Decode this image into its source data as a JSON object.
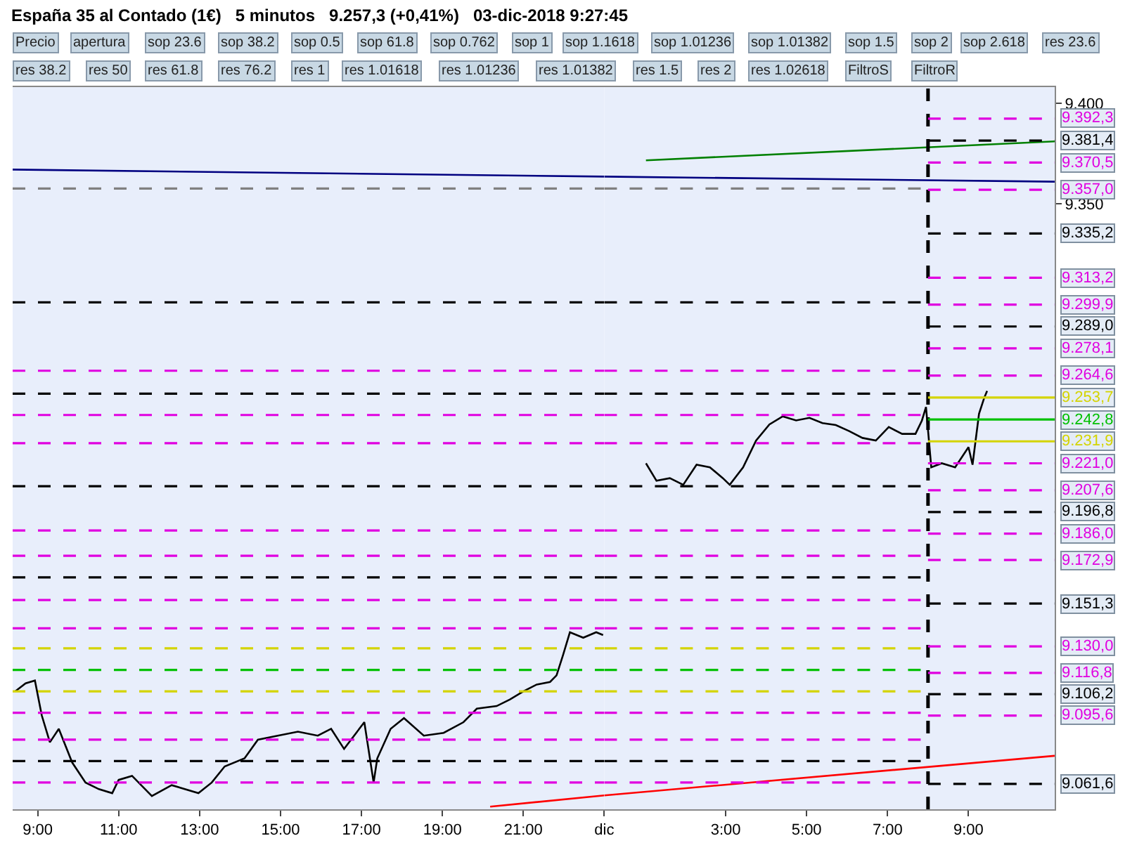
{
  "chart_data": [
    {
      "type": "line",
      "title": "España 35 al Contado (1€)   5 minutos   9.257,3 (+0,41%)   03-dic-2018 9:27:45",
      "annotations": [
        "Precio",
        "apertura",
        "sop 23.6",
        "sop 38.2",
        "sop 0.5",
        "sop 61.8",
        "sop 0.762",
        "sop 1",
        "sop 1.1618",
        "sop 1.01236",
        "sop 1.01382",
        "sop 1.5",
        "sop 2",
        "sop 2.618",
        "res 23.6",
        "res 38.2",
        "res 50",
        "res 61.8",
        "res 76.2",
        "res 1",
        "res 1.01618",
        "res 1.01236",
        "res 1.01382",
        "res 1.5",
        "res 2",
        "res 1.02618",
        "FiltroS",
        "FiltroR"
      ],
      "xlim": [
        8.38,
        23.0
      ],
      "xticks": [
        {
          "value": 9,
          "label": "9:00"
        },
        {
          "value": 11,
          "label": "11:00"
        },
        {
          "value": 13,
          "label": "13:00"
        },
        {
          "value": 15,
          "label": "15:00"
        },
        {
          "value": 17,
          "label": "17:00"
        },
        {
          "value": 19,
          "label": "19:00"
        },
        {
          "value": 21,
          "label": "21:00"
        }
      ],
      "ylim": [
        9049,
        9408
      ],
      "tick_labels": "x",
      "grid": false,
      "marker": "none",
      "series": [
        {
          "color": "#000000",
          "line_style": "solid",
          "x": [
            8.44,
            8.7,
            8.93,
            9.1,
            9.3,
            9.52,
            9.85,
            10.18,
            10.51,
            10.84,
            11.0,
            11.33,
            11.82,
            12.31,
            12.97,
            13.3,
            13.62,
            14.11,
            14.44,
            14.93,
            15.43,
            15.92,
            16.25,
            16.57,
            17.07,
            17.3,
            17.39,
            17.72,
            18.05,
            18.54,
            19.03,
            19.52,
            19.85,
            20.34,
            20.67,
            21.0,
            21.33,
            21.66,
            21.82,
            21.98,
            22.15,
            22.48,
            22.8,
            22.97
          ],
          "values": [
            9107.6,
            9111.6,
            9113,
            9095.6,
            9082.3,
            9089,
            9072.3,
            9062.3,
            9059,
            9057,
            9063.6,
            9065.6,
            9055.6,
            9061,
            9057,
            9062.3,
            9070.3,
            9074.3,
            9083.6,
            9085.6,
            9087.6,
            9085.6,
            9089,
            9079,
            9092.3,
            9062.3,
            9074.3,
            9089,
            9094.3,
            9085.6,
            9087,
            9092.3,
            9099,
            9100.3,
            9103.6,
            9107.6,
            9111,
            9112.3,
            9115.6,
            9125.6,
            9137,
            9134.3,
            9137,
            9135.6
          ]
        },
        {
          "color": "#000080",
          "line_style": "solid",
          "x": [
            8.38,
            23.0
          ],
          "values": [
            9367,
            9363.5
          ]
        },
        {
          "color": "#ff0000",
          "line_style": "solid",
          "x": [
            20.18,
            23.0
          ],
          "values": [
            9050.3,
            9055.9
          ]
        },
        {
          "color": "#808080",
          "line_style": "dashed",
          "x": [
            8.38,
            23.0
          ],
          "values": [
            9357.6,
            9357.6
          ]
        },
        {
          "color": "#000000",
          "line_style": "dashed",
          "x": [
            8.38,
            23.0
          ],
          "values": [
            9301,
            9301
          ]
        },
        {
          "color": "#e000e0",
          "line_style": "dashed",
          "x": [
            8.38,
            23.0
          ],
          "values": [
            9267,
            9267
          ]
        },
        {
          "color": "#000000",
          "line_style": "dashed",
          "x": [
            8.38,
            23.0
          ],
          "values": [
            9255.6,
            9255.6
          ]
        },
        {
          "color": "#e000e0",
          "line_style": "dashed",
          "x": [
            8.38,
            23.0
          ],
          "values": [
            9245,
            9245
          ]
        },
        {
          "color": "#e000e0",
          "line_style": "dashed",
          "x": [
            8.38,
            23.0
          ],
          "values": [
            9231,
            9231
          ]
        },
        {
          "color": "#000000",
          "line_style": "dashed",
          "x": [
            8.38,
            23.0
          ],
          "values": [
            9209.6,
            9209.6
          ]
        },
        {
          "color": "#e000e0",
          "line_style": "dashed",
          "x": [
            8.38,
            23.0
          ],
          "values": [
            9187.6,
            9187.6
          ]
        },
        {
          "color": "#e000e0",
          "line_style": "dashed",
          "x": [
            8.38,
            23.0
          ],
          "values": [
            9175,
            9175
          ]
        },
        {
          "color": "#000000",
          "line_style": "dashed",
          "x": [
            8.38,
            23.0
          ],
          "values": [
            9164.3,
            9164.3
          ]
        },
        {
          "color": "#e000e0",
          "line_style": "dashed",
          "x": [
            8.38,
            23.0
          ],
          "values": [
            9153,
            9153
          ]
        },
        {
          "color": "#e000e0",
          "line_style": "dashed",
          "x": [
            8.38,
            23.0
          ],
          "values": [
            9139,
            9139
          ]
        },
        {
          "color": "#d4d400",
          "line_style": "dashed",
          "x": [
            8.38,
            23.0
          ],
          "values": [
            9129,
            9129
          ]
        },
        {
          "color": "#00c000",
          "line_style": "dashed",
          "x": [
            8.38,
            23.0
          ],
          "values": [
            9118.3,
            9118.3
          ]
        },
        {
          "color": "#d4d400",
          "line_style": "dashed",
          "x": [
            8.38,
            23.0
          ],
          "values": [
            9107.6,
            9107.6
          ]
        },
        {
          "color": "#e000e0",
          "line_style": "dashed",
          "x": [
            8.38,
            23.0
          ],
          "values": [
            9097,
            9097
          ]
        },
        {
          "color": "#e000e0",
          "line_style": "dashed",
          "x": [
            8.38,
            23.0
          ],
          "values": [
            9083.6,
            9083.6
          ]
        },
        {
          "color": "#000000",
          "line_style": "dashed",
          "x": [
            8.38,
            23.0
          ],
          "values": [
            9073,
            9073
          ]
        },
        {
          "color": "#e000e0",
          "line_style": "dashed",
          "x": [
            8.38,
            23.0
          ],
          "values": [
            9062.3,
            9062.3
          ]
        }
      ]
    },
    {
      "type": "line",
      "xlim": [
        0,
        11.13
      ],
      "xticks": [
        {
          "value": 0,
          "label": "dic"
        },
        {
          "value": 3,
          "label": "3:00"
        },
        {
          "value": 5,
          "label": "5:00"
        },
        {
          "value": 7,
          "label": "7:00"
        },
        {
          "value": 9,
          "label": "9:00"
        }
      ],
      "ylim": [
        9049,
        9408
      ],
      "yticks": [
        {
          "value": 9400,
          "label": "9.400"
        },
        {
          "value": 9350,
          "label": "9.350"
        }
      ],
      "grid": false,
      "marker": "none",
      "series": [
        {
          "color": "#000000",
          "line_style": "solid",
          "x": [
            1.03,
            1.29,
            1.62,
            1.95,
            2.28,
            2.61,
            2.93,
            3.1,
            3.43,
            3.75,
            4.08,
            4.41,
            4.74,
            5.07,
            5.39,
            5.72,
            6.05,
            6.38,
            6.71,
            7.03,
            7.36,
            7.69,
            7.85,
            7.95,
            8.08,
            8.34,
            8.67,
            9.0,
            9.1,
            9.26,
            9.39,
            9.46
          ],
          "values": [
            9221,
            9212.3,
            9213.6,
            9210.3,
            9220.3,
            9219,
            9213.6,
            9210.3,
            9219,
            9232.3,
            9240.3,
            9244.3,
            9242.3,
            9243.6,
            9241,
            9240,
            9237,
            9233.6,
            9232.3,
            9239,
            9235.6,
            9235.6,
            9242.3,
            9249,
            9219,
            9221,
            9219,
            9229,
            9220.3,
            9245.6,
            9253.6,
            9257
          ]
        },
        {
          "color": "#000080",
          "line_style": "solid",
          "x": [
            0,
            11.13
          ],
          "values": [
            9363.5,
            9361
          ]
        },
        {
          "color": "#008000",
          "line_style": "solid",
          "x": [
            1.03,
            11.13
          ],
          "values": [
            9371.6,
            9381
          ]
        },
        {
          "color": "#ff0000",
          "line_style": "solid",
          "x": [
            0,
            11.13
          ],
          "values": [
            9055.9,
            9075.6
          ]
        },
        {
          "color": "#808080",
          "line_style": "dashed",
          "x": [
            0,
            7.85
          ],
          "values": [
            9357.6,
            9357.6
          ]
        },
        {
          "color": "#000000",
          "line_style": "dashed",
          "x": [
            0,
            7.85
          ],
          "values": [
            9301,
            9301
          ]
        },
        {
          "color": "#e000e0",
          "line_style": "dashed",
          "x": [
            0,
            7.85
          ],
          "values": [
            9267,
            9267
          ]
        },
        {
          "color": "#000000",
          "line_style": "dashed",
          "x": [
            0,
            7.85
          ],
          "values": [
            9255.6,
            9255.6
          ]
        },
        {
          "color": "#e000e0",
          "line_style": "dashed",
          "x": [
            0,
            7.85
          ],
          "values": [
            9245,
            9245
          ]
        },
        {
          "color": "#e000e0",
          "line_style": "dashed",
          "x": [
            0,
            7.85
          ],
          "values": [
            9231,
            9231
          ]
        },
        {
          "color": "#000000",
          "line_style": "dashed",
          "x": [
            0,
            7.85
          ],
          "values": [
            9209.6,
            9209.6
          ]
        },
        {
          "color": "#e000e0",
          "line_style": "dashed",
          "x": [
            0,
            7.85
          ],
          "values": [
            9187.6,
            9187.6
          ]
        },
        {
          "color": "#e000e0",
          "line_style": "dashed",
          "x": [
            0,
            7.85
          ],
          "values": [
            9175,
            9175
          ]
        },
        {
          "color": "#000000",
          "line_style": "dashed",
          "x": [
            0,
            7.85
          ],
          "values": [
            9164.3,
            9164.3
          ]
        },
        {
          "color": "#e000e0",
          "line_style": "dashed",
          "x": [
            0,
            7.85
          ],
          "values": [
            9153,
            9153
          ]
        },
        {
          "color": "#e000e0",
          "line_style": "dashed",
          "x": [
            0,
            7.85
          ],
          "values": [
            9139,
            9139
          ]
        },
        {
          "color": "#d4d400",
          "line_style": "dashed",
          "x": [
            0,
            7.85
          ],
          "values": [
            9129,
            9129
          ]
        },
        {
          "color": "#00c000",
          "line_style": "dashed",
          "x": [
            0,
            7.85
          ],
          "values": [
            9118.3,
            9118.3
          ]
        },
        {
          "color": "#d4d400",
          "line_style": "dashed",
          "x": [
            0,
            7.85
          ],
          "values": [
            9107.6,
            9107.6
          ]
        },
        {
          "color": "#e000e0",
          "line_style": "dashed",
          "x": [
            0,
            7.85
          ],
          "values": [
            9097,
            9097
          ]
        },
        {
          "color": "#e000e0",
          "line_style": "dashed",
          "x": [
            0,
            7.85
          ],
          "values": [
            9083.6,
            9083.6
          ]
        },
        {
          "color": "#000000",
          "line_style": "dashed",
          "x": [
            0,
            7.85
          ],
          "values": [
            9073,
            9073
          ]
        },
        {
          "color": "#e000e0",
          "line_style": "dashed",
          "x": [
            0,
            7.85
          ],
          "values": [
            9062.3,
            9062.3
          ]
        }
      ],
      "ref_lines": [
        {
          "axis": "x",
          "value": 8.0,
          "color": "#000000",
          "line_style": "dashed"
        },
        {
          "axis": "y",
          "value": 9392.3,
          "label": "9.392,3",
          "color": "#e000e0",
          "line_style": "dashed"
        },
        {
          "axis": "y",
          "value": 9381.4,
          "label": "9.381,4",
          "color": "#000000",
          "line_style": "dashed"
        },
        {
          "axis": "y",
          "value": 9370.5,
          "label": "9.370,5",
          "color": "#e000e0",
          "line_style": "dashed"
        },
        {
          "axis": "y",
          "value": 9357.0,
          "label": "9.357,0",
          "color": "#e000e0",
          "line_style": "dashed"
        },
        {
          "axis": "y",
          "value": 9335.2,
          "label": "9.335,2",
          "color": "#000000",
          "line_style": "dashed"
        },
        {
          "axis": "y",
          "value": 9313.2,
          "label": "9.313,2",
          "color": "#e000e0",
          "line_style": "dashed"
        },
        {
          "axis": "y",
          "value": 9299.9,
          "label": "9.299,9",
          "color": "#e000e0",
          "line_style": "dashed"
        },
        {
          "axis": "y",
          "value": 9289.0,
          "label": "9.289,0",
          "color": "#000000",
          "line_style": "dashed"
        },
        {
          "axis": "y",
          "value": 9278.1,
          "label": "9.278,1",
          "color": "#e000e0",
          "line_style": "dashed"
        },
        {
          "axis": "y",
          "value": 9264.6,
          "label": "9.264,6",
          "color": "#e000e0",
          "line_style": "dashed"
        },
        {
          "axis": "y",
          "value": 9253.7,
          "label": "9.253,7",
          "color": "#d4d400",
          "line_style": "solid"
        },
        {
          "axis": "y",
          "value": 9242.8,
          "label": "9.242,8",
          "color": "#00c000",
          "line_style": "solid"
        },
        {
          "axis": "y",
          "value": 9231.9,
          "label": "9.231,9",
          "color": "#d4d400",
          "line_style": "solid"
        },
        {
          "axis": "y",
          "value": 9221.0,
          "label": "9.221,0",
          "color": "#e000e0",
          "line_style": "dashed"
        },
        {
          "axis": "y",
          "value": 9207.6,
          "label": "9.207,6",
          "color": "#e000e0",
          "line_style": "dashed"
        },
        {
          "axis": "y",
          "value": 9196.8,
          "label": "9.196,8",
          "color": "#000000",
          "line_style": "dashed"
        },
        {
          "axis": "y",
          "value": 9186.0,
          "label": "9.186,0",
          "color": "#e000e0",
          "line_style": "dashed"
        },
        {
          "axis": "y",
          "value": 9172.9,
          "label": "9.172,9",
          "color": "#e000e0",
          "line_style": "dashed"
        },
        {
          "axis": "y",
          "value": 9151.3,
          "label": "9.151,3",
          "color": "#000000",
          "line_style": "dashed"
        },
        {
          "axis": "y",
          "value": 9130.0,
          "label": "9.130,0",
          "color": "#e000e0",
          "line_style": "dashed"
        },
        {
          "axis": "y",
          "value": 9116.8,
          "label": "9.116,8",
          "color": "#e000e0",
          "line_style": "dashed"
        },
        {
          "axis": "y",
          "value": 9106.2,
          "label": "9.106,2",
          "color": "#000000",
          "line_style": "dashed"
        },
        {
          "axis": "y",
          "value": 9095.6,
          "label": "9.095,6",
          "color": "#e000e0",
          "line_style": "dashed"
        },
        {
          "axis": "y",
          "value": 9061.6,
          "label": "9.061,6",
          "color": "#000000",
          "line_style": "dashed"
        }
      ]
    }
  ]
}
